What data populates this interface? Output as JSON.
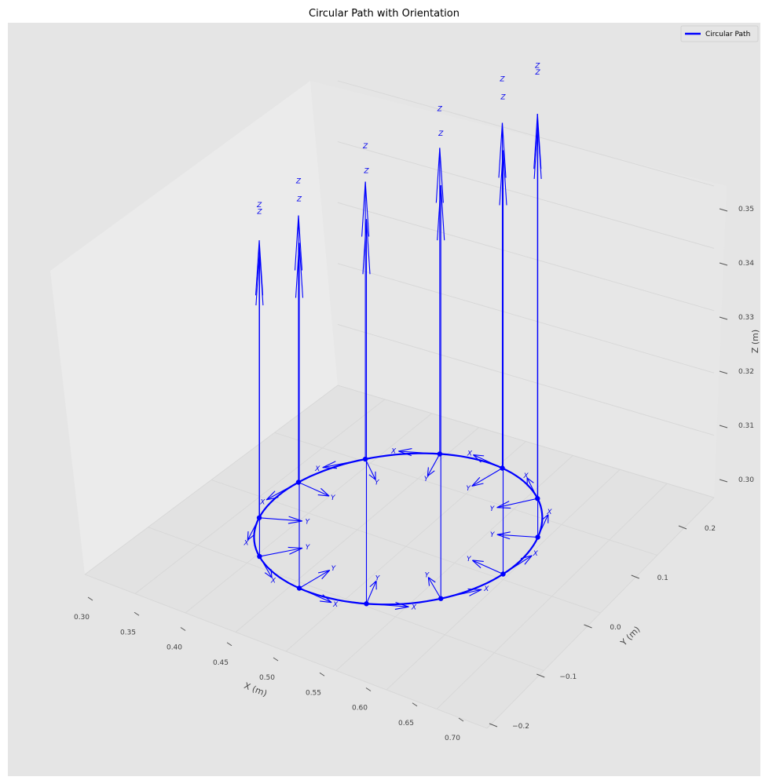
{
  "chart_data": {
    "type": "line3d",
    "title": "Circular Path with Orientation",
    "xlabel": "X (m)",
    "ylabel": "Y (m)",
    "zlabel": "Z (m)",
    "xlim": [
      0.28,
      0.72
    ],
    "ylim": [
      -0.22,
      0.22
    ],
    "zlim": [
      0.295,
      0.355
    ],
    "xticks": [
      "0.30",
      "0.35",
      "0.40",
      "0.45",
      "0.50",
      "0.55",
      "0.60",
      "0.65",
      "0.70"
    ],
    "yticks": [
      "−0.2",
      "−0.1",
      "0.0",
      "0.1",
      "0.2"
    ],
    "zticks": [
      "0.30",
      "0.31",
      "0.32",
      "0.33",
      "0.34",
      "0.35"
    ],
    "grid": true,
    "legend": {
      "position": "upper-right",
      "entries": [
        "Circular Path"
      ]
    },
    "series": [
      {
        "name": "Circular Path",
        "color": "#0000ff",
        "center": [
          0.5,
          0.0,
          0.3
        ],
        "radius": 0.2,
        "orientation_samples": 12,
        "frame_axes": [
          "X",
          "Y",
          "Z"
        ],
        "x": [
          0.7,
          0.673,
          0.6,
          0.5,
          0.4,
          0.327,
          0.3,
          0.327,
          0.4,
          0.5,
          0.6,
          0.673
        ],
        "y": [
          0.0,
          0.1,
          0.173,
          0.2,
          0.173,
          0.1,
          0.0,
          -0.1,
          -0.173,
          -0.2,
          -0.173,
          -0.1
        ],
        "z": [
          0.3,
          0.3,
          0.3,
          0.3,
          0.3,
          0.3,
          0.3,
          0.3,
          0.3,
          0.3,
          0.3,
          0.3
        ]
      }
    ]
  }
}
